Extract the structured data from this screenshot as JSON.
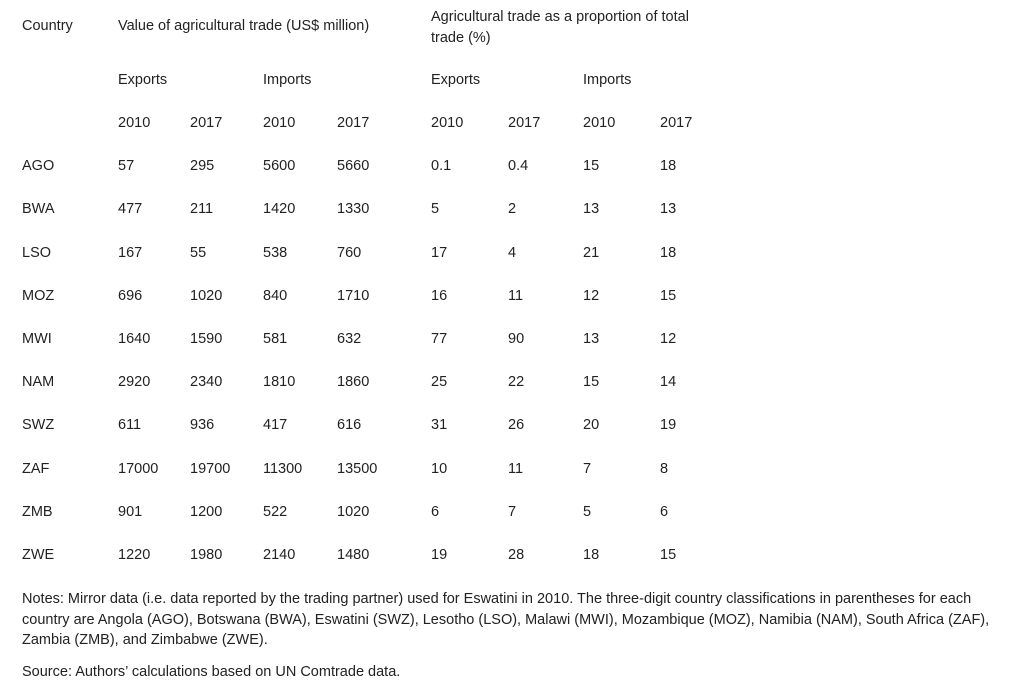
{
  "table": {
    "headers": {
      "country": "Country",
      "value_group": "Value of agricultural trade (US$ million)",
      "proportion_group_line1": "Agricultural trade as a proportion of total",
      "proportion_group_line2": "trade (%)",
      "exports_value": "Exports",
      "imports_value": "Imports",
      "exports_prop": "Exports",
      "imports_prop": "Imports",
      "years": [
        "2010",
        "2017",
        "2010",
        "2017",
        "2010",
        "2017",
        "2010",
        "2017"
      ]
    },
    "rows": [
      [
        "AGO",
        "57",
        "295",
        "5600",
        "5660",
        "0.1",
        "0.4",
        "15",
        "18"
      ],
      [
        "BWA",
        "477",
        "211",
        "1420",
        "1330",
        "5",
        "2",
        "13",
        "13"
      ],
      [
        "LSO",
        "167",
        "55",
        "538",
        "760",
        "17",
        "4",
        "21",
        "18"
      ],
      [
        "MOZ",
        "696",
        "1020",
        "840",
        "1710",
        "16",
        "11",
        "12",
        "15"
      ],
      [
        "MWI",
        "1640",
        "1590",
        "581",
        "632",
        "77",
        "90",
        "13",
        "12"
      ],
      [
        "NAM",
        "2920",
        "2340",
        "1810",
        "1860",
        "25",
        "22",
        "15",
        "14"
      ],
      [
        "SWZ",
        "611",
        "936",
        "417",
        "616",
        "31",
        "26",
        "20",
        "19"
      ],
      [
        "ZAF",
        "17000",
        "19700",
        "11300",
        "13500",
        "10",
        "11",
        "7",
        "8"
      ],
      [
        "ZMB",
        "901",
        "1200",
        "522",
        "1020",
        "6",
        "7",
        "5",
        "6"
      ],
      [
        "ZWE",
        "1220",
        "1980",
        "2140",
        "1480",
        "19",
        "28",
        "18",
        "15"
      ]
    ]
  },
  "notes": "Notes: Mirror data  (i.e. data reported by the trading partner) used for Eswatini in 2010. The three-digit country classifications in parentheses for each country are Angola (AGO), Botswana (BWA), Eswatini (SWZ), Lesotho (LSO), Malawi (MWI), Mozambique (MOZ), Namibia (NAM), South Africa (ZAF), Zambia (ZMB), and Zimbabwe (ZWE).",
  "source": "Source: Authors’ calculations based on UN Comtrade data."
}
